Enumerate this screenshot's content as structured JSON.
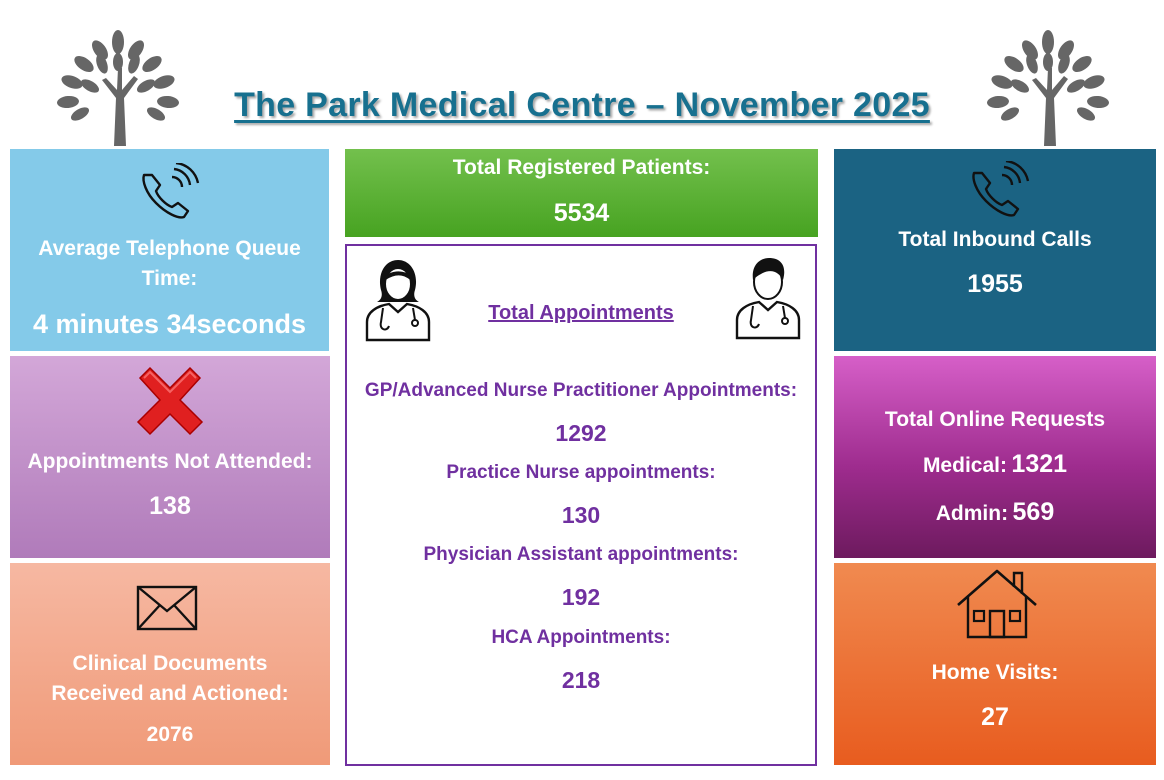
{
  "header": {
    "title": "The Park Medical Centre – November 2025"
  },
  "icons": {
    "logo_left": "tree-icon",
    "logo_right": "tree-icon",
    "queue": "phone-icon",
    "calls": "phone-icon",
    "dna": "red-x-icon",
    "docs": "envelope-icon",
    "home": "house-icon",
    "clinician_female": "female-doctor-icon",
    "clinician_male": "male-doctor-icon"
  },
  "colors": {
    "title": "#17708f",
    "queue_panel": "#84cae9",
    "dna_panel": "#b07bba",
    "docs_panel": "#f09a78",
    "registered_panel": "#47a321",
    "appointments_border": "#7030a0",
    "calls_panel": "#1b6383",
    "online_panel": "#9e2c8e",
    "home_panel": "#e85c1f"
  },
  "telephone_queue": {
    "label_line1": "Average Telephone Queue",
    "label_line2": "Time:",
    "value": "4 minutes 34seconds"
  },
  "not_attended": {
    "label": "Appointments Not Attended:",
    "value": "138"
  },
  "clinical_documents": {
    "label_line1": "Clinical Documents",
    "label_line2": "Received and Actioned:",
    "value": "2076"
  },
  "registered_patients": {
    "label": "Total Registered Patients:",
    "value": "5534"
  },
  "appointments": {
    "title": "Total Appointments",
    "items": [
      {
        "label": "GP/Advanced Nurse Practitioner Appointments:",
        "value": "1292"
      },
      {
        "label": "Practice Nurse appointments:",
        "value": "130"
      },
      {
        "label": "Physician Assistant appointments:",
        "value": "192"
      },
      {
        "label": "HCA Appointments:",
        "value": "218"
      }
    ]
  },
  "inbound_calls": {
    "label": "Total Inbound Calls",
    "value": "1955"
  },
  "online_requests": {
    "label": "Total Online Requests",
    "medical_label": "Medical:",
    "medical_value": "1321",
    "admin_label": "Admin:",
    "admin_value": "569"
  },
  "home_visits": {
    "label": "Home Visits:",
    "value": "27"
  }
}
